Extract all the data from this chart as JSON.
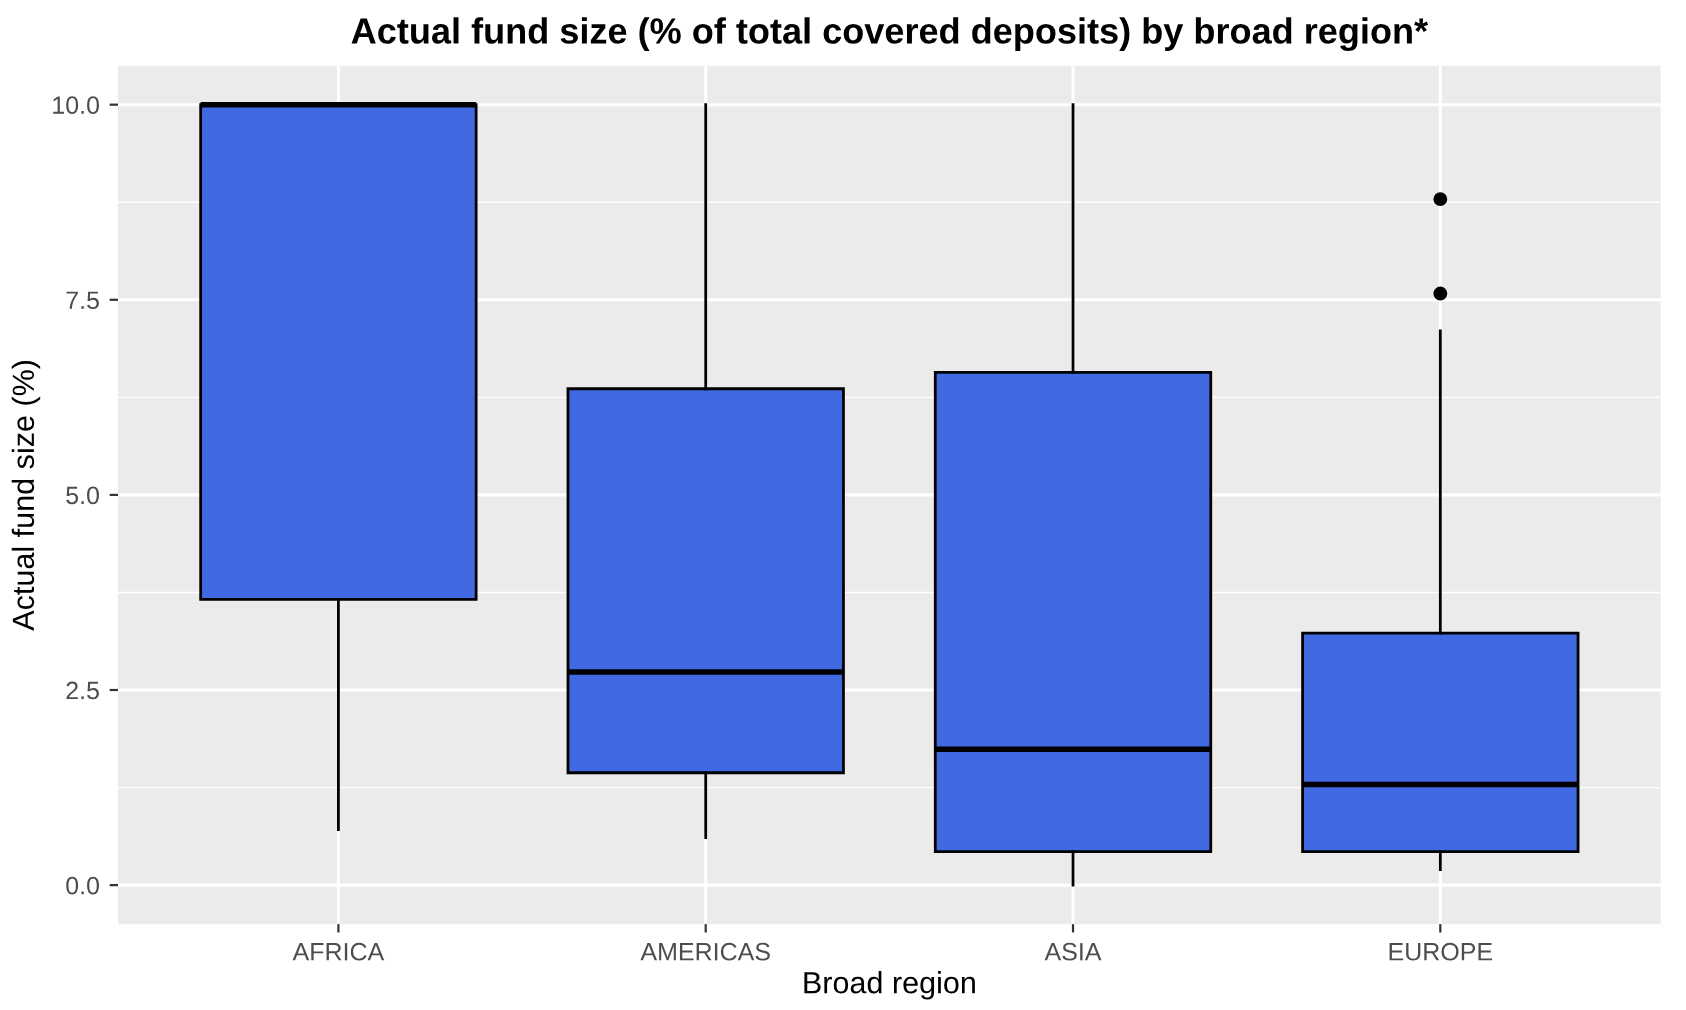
{
  "chart_data": {
    "type": "box",
    "title": "Actual fund size (% of total covered deposits) by broad region*",
    "xlabel": "Broad region",
    "ylabel": "Actual fund size (%)",
    "categories": [
      "AFRICA",
      "AMERICAS",
      "ASIA",
      "EUROPE"
    ],
    "boxes": [
      {
        "low": 0.71,
        "q1": 3.66,
        "median": 10.0,
        "q3": 10.0,
        "high": 10.0
      },
      {
        "low": 0.61,
        "q1": 1.44,
        "median": 2.73,
        "q3": 6.36,
        "high": 10.0
      },
      {
        "low": 0.0,
        "q1": 0.43,
        "median": 1.74,
        "q3": 6.57,
        "high": 10.0
      },
      {
        "low": 0.2,
        "q1": 0.43,
        "median": 1.29,
        "q3": 3.23,
        "high": 7.1,
        "outliers": [
          7.58,
          8.79
        ]
      }
    ],
    "color": "#4169e1",
    "ylim": [
      -0.5,
      10.5
    ],
    "yticks": [
      {
        "value": 0,
        "label": "0.0"
      },
      {
        "value": 2.5,
        "label": "2.5"
      },
      {
        "value": 5,
        "label": "5.0"
      },
      {
        "value": 7.5,
        "label": "7.5"
      },
      {
        "value": 10,
        "label": "10.0"
      }
    ],
    "grid": true
  }
}
